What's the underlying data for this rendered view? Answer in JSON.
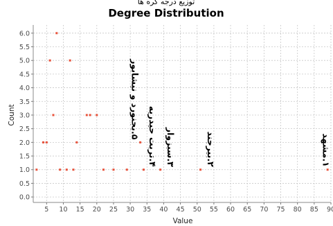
{
  "chart_data": {
    "type": "scatter",
    "title": "Degree Distribution",
    "subtitle": "توزیع درجه گره ها",
    "xlabel": "Value",
    "ylabel": "Count",
    "xlim": [
      1,
      90
    ],
    "ylim": [
      -0.2,
      6.3
    ],
    "xticks": [
      5,
      10,
      15,
      20,
      25,
      30,
      35,
      40,
      45,
      50,
      55,
      60,
      65,
      70,
      75,
      80,
      85,
      90
    ],
    "yticks": [
      0.0,
      0.5,
      1.0,
      1.5,
      2.0,
      2.5,
      3.0,
      3.5,
      4.0,
      4.5,
      5.0,
      5.5,
      6.0
    ],
    "ytick_labels": [
      "0.0",
      "0.5",
      "1.0",
      "1.5",
      "2.0",
      "2.5",
      "3.0",
      "3.5",
      "4.0",
      "4.5",
      "5.0",
      "5.5",
      "6.0"
    ],
    "grid": true,
    "marker_color": "#e8523b",
    "points": [
      {
        "x": 2,
        "y": 1
      },
      {
        "x": 4,
        "y": 2
      },
      {
        "x": 5,
        "y": 2
      },
      {
        "x": 6,
        "y": 5
      },
      {
        "x": 7,
        "y": 3
      },
      {
        "x": 8,
        "y": 6
      },
      {
        "x": 9,
        "y": 1
      },
      {
        "x": 11,
        "y": 1
      },
      {
        "x": 12,
        "y": 5
      },
      {
        "x": 13,
        "y": 1
      },
      {
        "x": 14,
        "y": 2
      },
      {
        "x": 17,
        "y": 3
      },
      {
        "x": 18,
        "y": 3
      },
      {
        "x": 20,
        "y": 3
      },
      {
        "x": 22,
        "y": 1
      },
      {
        "x": 25,
        "y": 1
      },
      {
        "x": 29,
        "y": 1
      },
      {
        "x": 33,
        "y": 2
      },
      {
        "x": 34,
        "y": 1
      },
      {
        "x": 39,
        "y": 1
      },
      {
        "x": 51,
        "y": 1
      },
      {
        "x": 89,
        "y": 1
      }
    ],
    "annotations": [
      {
        "text": "۵.بجنورد و نیشابور",
        "x": 30.5,
        "y": 2,
        "rotation": 90
      },
      {
        "text": "۴.تربت حیدریه",
        "x": 35.8,
        "y": 1,
        "rotation": 90
      },
      {
        "text": "۳.سبزوار",
        "x": 41.2,
        "y": 1,
        "rotation": 90
      },
      {
        "text": "۲.بیرجند",
        "x": 53.2,
        "y": 1,
        "rotation": 90
      },
      {
        "text": "۱.مشهد",
        "x": 87.6,
        "y": 1,
        "rotation": 90
      }
    ]
  }
}
